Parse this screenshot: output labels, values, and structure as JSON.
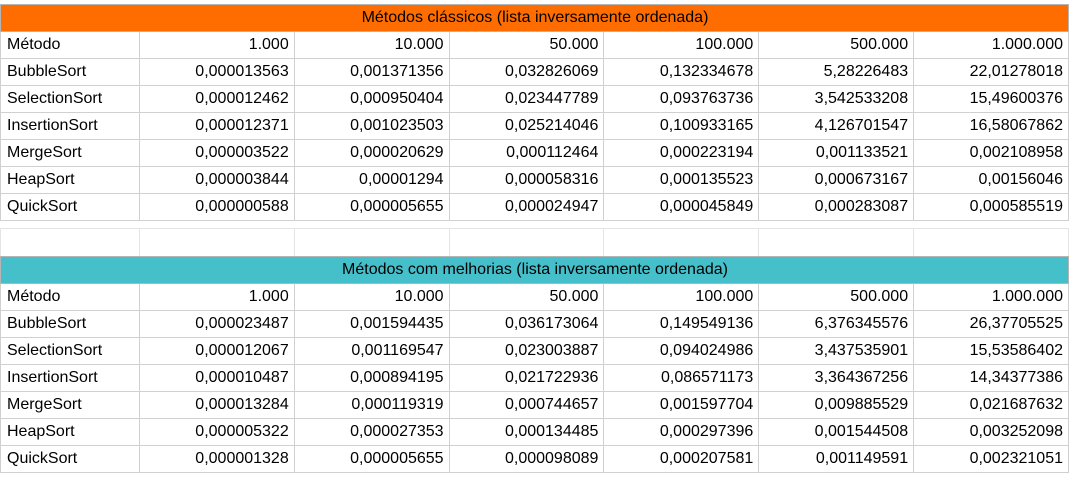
{
  "table_classic": {
    "title": "Métodos clássicos (lista inversamente ordenada)",
    "header": [
      "Método",
      "1.000",
      "10.000",
      "50.000",
      "100.000",
      "500.000",
      "1.000.000"
    ],
    "rows": [
      [
        "BubbleSort",
        "0,000013563",
        "0,001371356",
        "0,032826069",
        "0,132334678",
        "5,28226483",
        "22,01278018"
      ],
      [
        "SelectionSort",
        "0,000012462",
        "0,000950404",
        "0,023447789",
        "0,093763736",
        "3,542533208",
        "15,49600376"
      ],
      [
        "InsertionSort",
        "0,000012371",
        "0,001023503",
        "0,025214046",
        "0,100933165",
        "4,126701547",
        "16,58067862"
      ],
      [
        "MergeSort",
        "0,000003522",
        "0,000020629",
        "0,000112464",
        "0,000223194",
        "0,001133521",
        "0,002108958"
      ],
      [
        "HeapSort",
        "0,000003844",
        "0,00001294",
        "0,000058316",
        "0,000135523",
        "0,000673167",
        "0,00156046"
      ],
      [
        "QuickSort",
        "0,000000588",
        "0,000005655",
        "0,000024947",
        "0,000045849",
        "0,000283087",
        "0,000585519"
      ]
    ]
  },
  "table_improved": {
    "title": "Métodos com melhorias (lista inversamente ordenada)",
    "header": [
      "Método",
      "1.000",
      "10.000",
      "50.000",
      "100.000",
      "500.000",
      "1.000.000"
    ],
    "rows": [
      [
        "BubbleSort",
        "0,000023487",
        "0,001594435",
        "0,036173064",
        "0,149549136",
        "6,376345576",
        "26,37705525"
      ],
      [
        "SelectionSort",
        "0,000012067",
        "0,001169547",
        "0,023003887",
        "0,094024986",
        "3,437535901",
        "15,53586402"
      ],
      [
        "InsertionSort",
        "0,000010487",
        "0,000894195",
        "0,021722936",
        "0,086571173",
        "3,364367256",
        "14,34377386"
      ],
      [
        "MergeSort",
        "0,000013284",
        "0,000119319",
        "0,000744657",
        "0,001597704",
        "0,009885529",
        "0,021687632"
      ],
      [
        "HeapSort",
        "0,000005322",
        "0,000027353",
        "0,000134485",
        "0,000297396",
        "0,001544508",
        "0,003252098"
      ],
      [
        "QuickSort",
        "0,000001328",
        "0,000005655",
        "0,000098089",
        "0,000207581",
        "0,001149591",
        "0,002321051"
      ]
    ]
  },
  "colors": {
    "classic_title_bg": "#ff6d01",
    "improved_title_bg": "#45bfca",
    "gridline": "#d0d0d0"
  }
}
